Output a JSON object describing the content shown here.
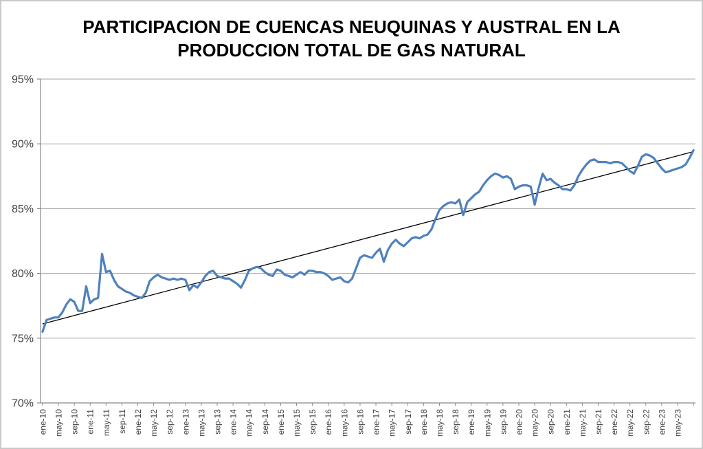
{
  "chart_data": {
    "type": "line",
    "title_line1": "PARTICIPACION DE CUENCAS NEUQUINAS Y AUSTRAL EN LA",
    "title_line2": "PRODUCCION TOTAL DE GAS NATURAL",
    "ylim": [
      70,
      95
    ],
    "y_ticks": [
      {
        "label": "95%",
        "value": 95
      },
      {
        "label": "90%",
        "value": 90
      },
      {
        "label": "85%",
        "value": 85
      },
      {
        "label": "80%",
        "value": 80
      },
      {
        "label": "75%",
        "value": 75
      },
      {
        "label": "70%",
        "value": 70
      }
    ],
    "x_ticks": [
      "ene-10",
      "may-10",
      "sep-10",
      "ene-11",
      "may-11",
      "sep-11",
      "ene-12",
      "may-12",
      "sep-12",
      "ene-13",
      "may-13",
      "sep-13",
      "ene-14",
      "may-14",
      "sep-14",
      "ene-15",
      "may-15",
      "sep-15",
      "ene-16",
      "may-16",
      "sep-16",
      "ene-17",
      "may-17",
      "sep-17",
      "ene-18",
      "may-18",
      "sep-18",
      "ene-19",
      "may-19",
      "sep-19",
      "ene-20",
      "may-20",
      "sep-20",
      "ene-21",
      "may-21",
      "sep-21",
      "ene-22",
      "may-22",
      "sep-22",
      "ene-23",
      "may-23"
    ],
    "x_tick_every_n_points": 4,
    "frequency": "monthly",
    "grid": true,
    "legend": "none",
    "series": [
      {
        "color": "#4F81BD",
        "values": [
          75.5,
          76.4,
          76.5,
          76.6,
          76.6,
          77.0,
          77.6,
          78.0,
          77.8,
          77.1,
          77.1,
          79.0,
          77.7,
          78.0,
          78.1,
          81.5,
          80.1,
          80.2,
          79.5,
          79.0,
          78.8,
          78.6,
          78.5,
          78.3,
          78.2,
          78.1,
          78.5,
          79.4,
          79.7,
          79.9,
          79.7,
          79.6,
          79.5,
          79.6,
          79.5,
          79.6,
          79.5,
          78.7,
          79.1,
          78.9,
          79.3,
          79.8,
          80.1,
          80.2,
          79.8,
          79.7,
          79.6,
          79.6,
          79.4,
          79.2,
          78.9,
          79.5,
          80.2,
          80.4,
          80.5,
          80.4,
          80.1,
          79.9,
          79.8,
          80.3,
          80.2,
          79.9,
          79.8,
          79.7,
          79.9,
          80.1,
          79.9,
          80.2,
          80.2,
          80.1,
          80.1,
          80.0,
          79.8,
          79.5,
          79.6,
          79.7,
          79.4,
          79.3,
          79.6,
          80.4,
          81.2,
          81.4,
          81.3,
          81.2,
          81.6,
          81.9,
          80.9,
          81.8,
          82.3,
          82.6,
          82.3,
          82.1,
          82.4,
          82.7,
          82.8,
          82.7,
          82.9,
          83.0,
          83.4,
          84.2,
          84.9,
          85.2,
          85.4,
          85.5,
          85.4,
          85.7,
          84.5,
          85.5,
          85.8,
          86.1,
          86.3,
          86.8,
          87.2,
          87.5,
          87.7,
          87.6,
          87.4,
          87.5,
          87.3,
          86.5,
          86.7,
          86.8,
          86.8,
          86.7,
          85.3,
          86.6,
          87.7,
          87.2,
          87.3,
          87.0,
          86.8,
          86.5,
          86.5,
          86.4,
          86.8,
          87.5,
          88.0,
          88.4,
          88.7,
          88.8,
          88.6,
          88.6,
          88.6,
          88.5,
          88.6,
          88.6,
          88.5,
          88.2,
          87.9,
          87.7,
          88.3,
          89.0,
          89.2,
          89.1,
          88.9,
          88.5,
          88.1,
          87.8,
          87.9,
          88.0,
          88.1,
          88.2,
          88.4,
          88.9,
          89.5
        ]
      }
    ],
    "trendline": {
      "type": "linear",
      "start_value": 76.1,
      "end_value": 89.4,
      "color": "#000000"
    },
    "colors": {
      "line": "#4F81BD",
      "trend": "#000000",
      "grid": "#A6A6A6",
      "axis": "#898989",
      "tick_text": "#3F3F3F",
      "title": "#000000",
      "background": "#FFFFFF",
      "frame_border": "#C9C9C9"
    }
  }
}
